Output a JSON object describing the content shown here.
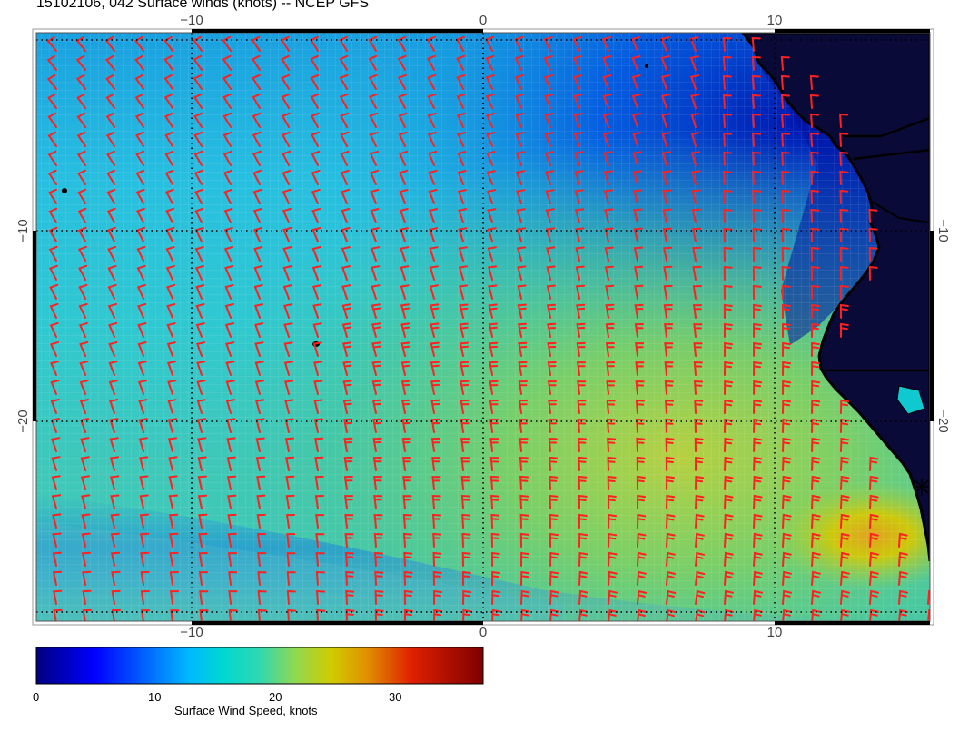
{
  "title": "15102106, 042 Surface winds (knots) -- NCEP GFS",
  "map": {
    "lon_range": [
      -15.3,
      15.3
    ],
    "lat_range": [
      -30,
      0
    ],
    "lon_ticks": [
      {
        "value": -10,
        "label": "−10"
      },
      {
        "value": 0,
        "label": "0"
      },
      {
        "value": 10,
        "label": "10"
      }
    ],
    "lat_ticks": [
      {
        "value": -10,
        "label": "−10"
      },
      {
        "value": -20,
        "label": "−20"
      }
    ],
    "grid": "dotted",
    "barb_color": "#ff2020",
    "coastline_color": "#000000"
  },
  "colorbar": {
    "label": "Surface Wind Speed, knots",
    "ticks": [
      {
        "value": 0,
        "label": "0"
      },
      {
        "value": 10,
        "label": "10"
      },
      {
        "value": 20,
        "label": "20"
      },
      {
        "value": 30,
        "label": "30"
      }
    ],
    "range": [
      0,
      37
    ],
    "colors": [
      "#00007f",
      "#0000ff",
      "#0080ff",
      "#00cfd8",
      "#40d0a0",
      "#90d040",
      "#d0c800",
      "#d08000",
      "#c00000",
      "#7f0000"
    ]
  }
}
